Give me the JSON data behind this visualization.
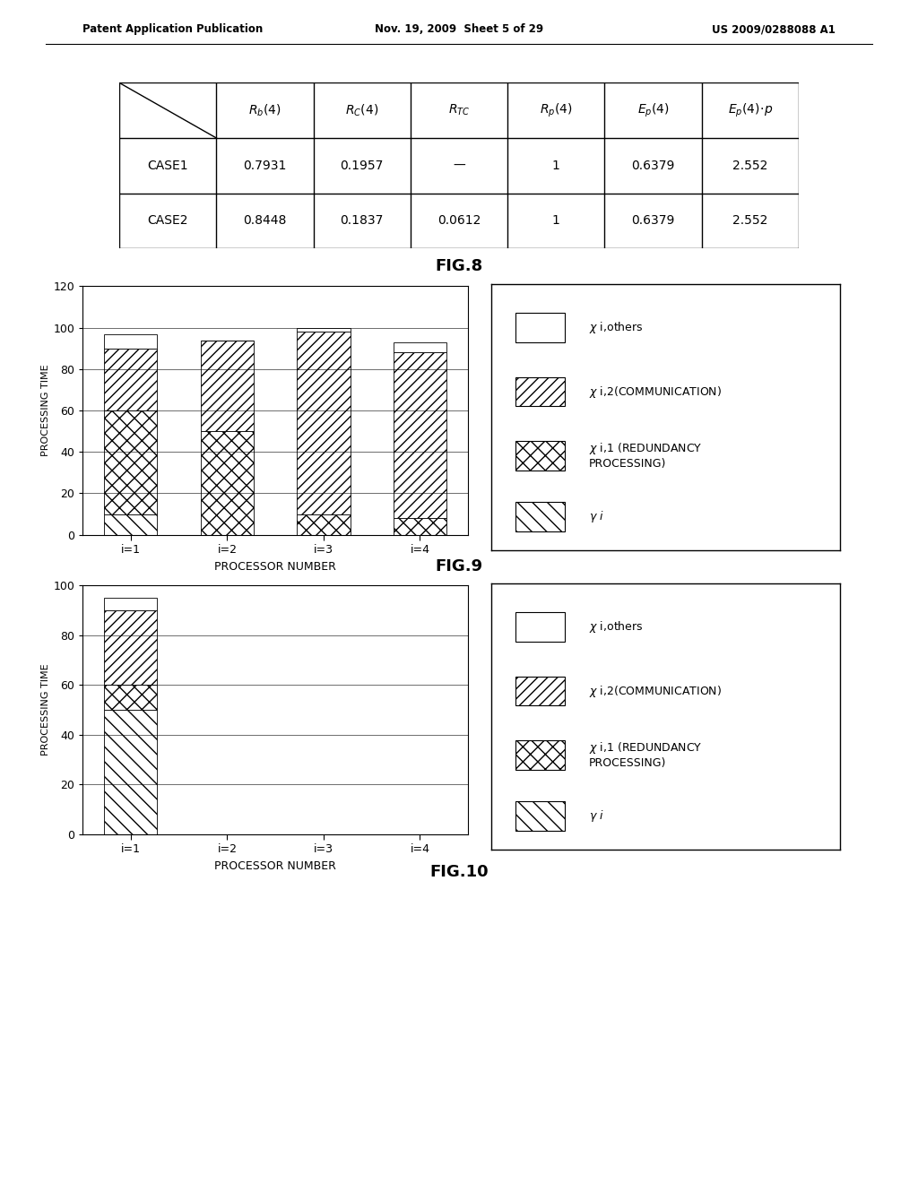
{
  "header_left": "Patent Application Publication",
  "header_mid": "Nov. 19, 2009  Sheet 5 of 29",
  "header_right": "US 2009/0288088 A1",
  "table_row0": [
    "",
    "R_b(4)",
    "R_C(4)",
    "R_TC",
    "R_p(4)",
    "E_p(4)",
    "E_p(4)·p"
  ],
  "table_row1": [
    "CASE1",
    "0.7931",
    "0.1957",
    "—",
    "1",
    "0.6379",
    "2.552"
  ],
  "table_row2": [
    "CASE2",
    "0.8448",
    "0.1837",
    "0.0612",
    "1",
    "0.6379",
    "2.552"
  ],
  "fig8_label": "FIG.8",
  "fig9_title": "FIG.9",
  "fig9_ylabel": "PROCESSING TIME",
  "fig9_xlabel": "PROCESSOR NUMBER",
  "fig9_xticks": [
    "i=1",
    "i=2",
    "i=3",
    "i=4"
  ],
  "fig9_ylim": [
    0,
    120
  ],
  "fig9_yticks": [
    0,
    20,
    40,
    60,
    80,
    100,
    120
  ],
  "fig9_gamma": [
    10,
    0,
    0,
    0
  ],
  "fig9_xi1": [
    50,
    50,
    10,
    8
  ],
  "fig9_xi2": [
    30,
    44,
    88,
    80
  ],
  "fig9_xothers": [
    7,
    0,
    2,
    5
  ],
  "fig10_title": "FIG.10",
  "fig10_ylabel": "PROCESSING TIME",
  "fig10_xlabel": "PROCESSOR NUMBER",
  "fig10_xticks": [
    "i=1",
    "i=2",
    "i=3",
    "i=4"
  ],
  "fig10_ylim": [
    0,
    100
  ],
  "fig10_yticks": [
    0,
    20,
    40,
    60,
    80,
    100
  ],
  "fig10_gamma": [
    50,
    0,
    0,
    0
  ],
  "fig10_xi1": [
    10,
    0,
    0,
    0
  ],
  "fig10_xi2": [
    30,
    0,
    0,
    0
  ],
  "fig10_xothers": [
    5,
    0,
    0,
    0
  ],
  "bg_color": "#f5f5f5"
}
